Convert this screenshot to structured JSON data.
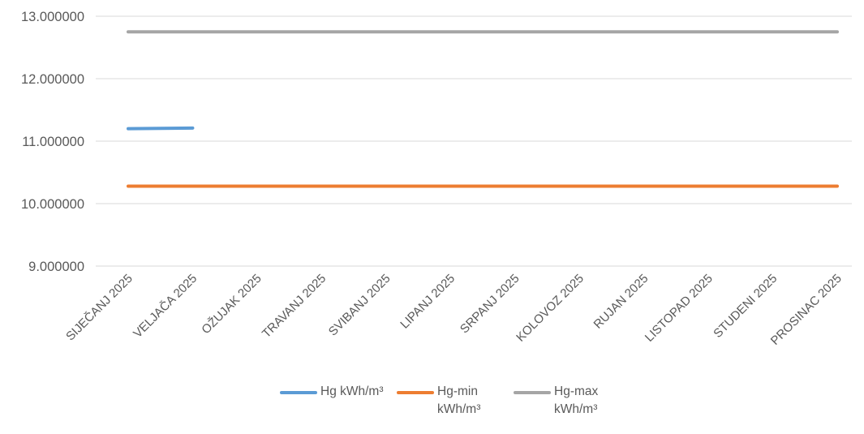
{
  "chart_data": {
    "type": "line",
    "title": "",
    "xlabel": "",
    "ylabel": "",
    "categories": [
      "SIJEČANJ 2025",
      "VELJAČA 2025",
      "OŽUJAK 2025",
      "TRAVANJ 2025",
      "SVIBANJ 2025",
      "LIPANJ 2025",
      "SRPANJ 2025",
      "KOLOVOZ 2025",
      "RUJAN 2025",
      "LISTOPAD 2025",
      "STUDENI 2025",
      "PROSINAC 2025"
    ],
    "ylim": [
      9,
      13
    ],
    "y_ticks": [
      9,
      10,
      11,
      12,
      13
    ],
    "y_tick_labels": [
      "9.000000",
      "10.000000",
      "11.000000",
      "12.000000",
      "13.000000"
    ],
    "grid": true,
    "legend_position": "bottom",
    "series": [
      {
        "name": "Hg kWh/m³",
        "color": "#5b9bd5",
        "values": [
          11.2,
          11.21,
          null,
          null,
          null,
          null,
          null,
          null,
          null,
          null,
          null,
          null
        ]
      },
      {
        "name": "Hg-min kWh/m³",
        "color": "#ed7d31",
        "values": [
          10.28,
          10.28,
          10.28,
          10.28,
          10.28,
          10.28,
          10.28,
          10.28,
          10.28,
          10.28,
          10.28,
          10.28
        ]
      },
      {
        "name": "Hg-max kWh/m³",
        "color": "#a5a5a5",
        "values": [
          12.75,
          12.75,
          12.75,
          12.75,
          12.75,
          12.75,
          12.75,
          12.75,
          12.75,
          12.75,
          12.75,
          12.75
        ]
      }
    ]
  }
}
